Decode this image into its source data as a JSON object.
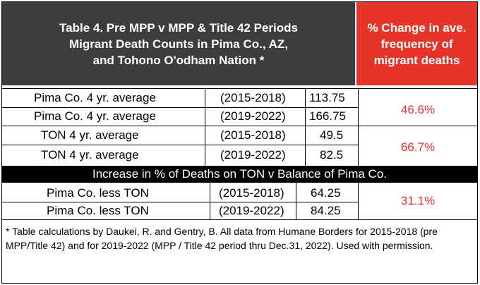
{
  "header": {
    "title_lines": [
      "Table 4. Pre MPP v MPP & Title 42 Periods",
      "Migrant Death Counts in Pima Co., AZ,",
      "and  Tohono O'odham Nation *"
    ],
    "change_lines": [
      "% Change  in  ave.",
      "frequency    of",
      "migrant deaths"
    ]
  },
  "rows": [
    {
      "label": "Pima Co. 4 yr. average",
      "period": "(2015-2018)",
      "value": "113.75"
    },
    {
      "label": "Pima Co. 4 yr. average",
      "period": "(2019-2022)",
      "value": "166.75"
    },
    {
      "label": "TON 4 yr. average",
      "period": "(2015-2018)",
      "value": "49.5"
    },
    {
      "label": "TON 4 yr. average",
      "period": "(2019-2022)",
      "value": "82.5"
    },
    {
      "label": "Pima Co. less TON",
      "period": "(2015-2018)",
      "value": "64.25"
    },
    {
      "label": "Pima Co. less TON",
      "period": "(2019-2022)",
      "value": "84.25"
    }
  ],
  "changes": [
    "46.6%",
    "66.7%",
    "31.1%"
  ],
  "band_text": "Increase in % of Deaths on TON v Balance of Pima Co.",
  "footnote": "* Table calculations by Daukei, R. and Gentry, B. All data from Humane Borders for 2015-2018 (pre MPP/Title 42) and for 2019-2022 (MPP / Title 42 period thru Dec.31, 2022). Used with permission.",
  "colors": {
    "header_dark": "#3d3d3d",
    "header_red": "#e5352b",
    "pct_red": "#e0312a",
    "band": "#000000"
  }
}
